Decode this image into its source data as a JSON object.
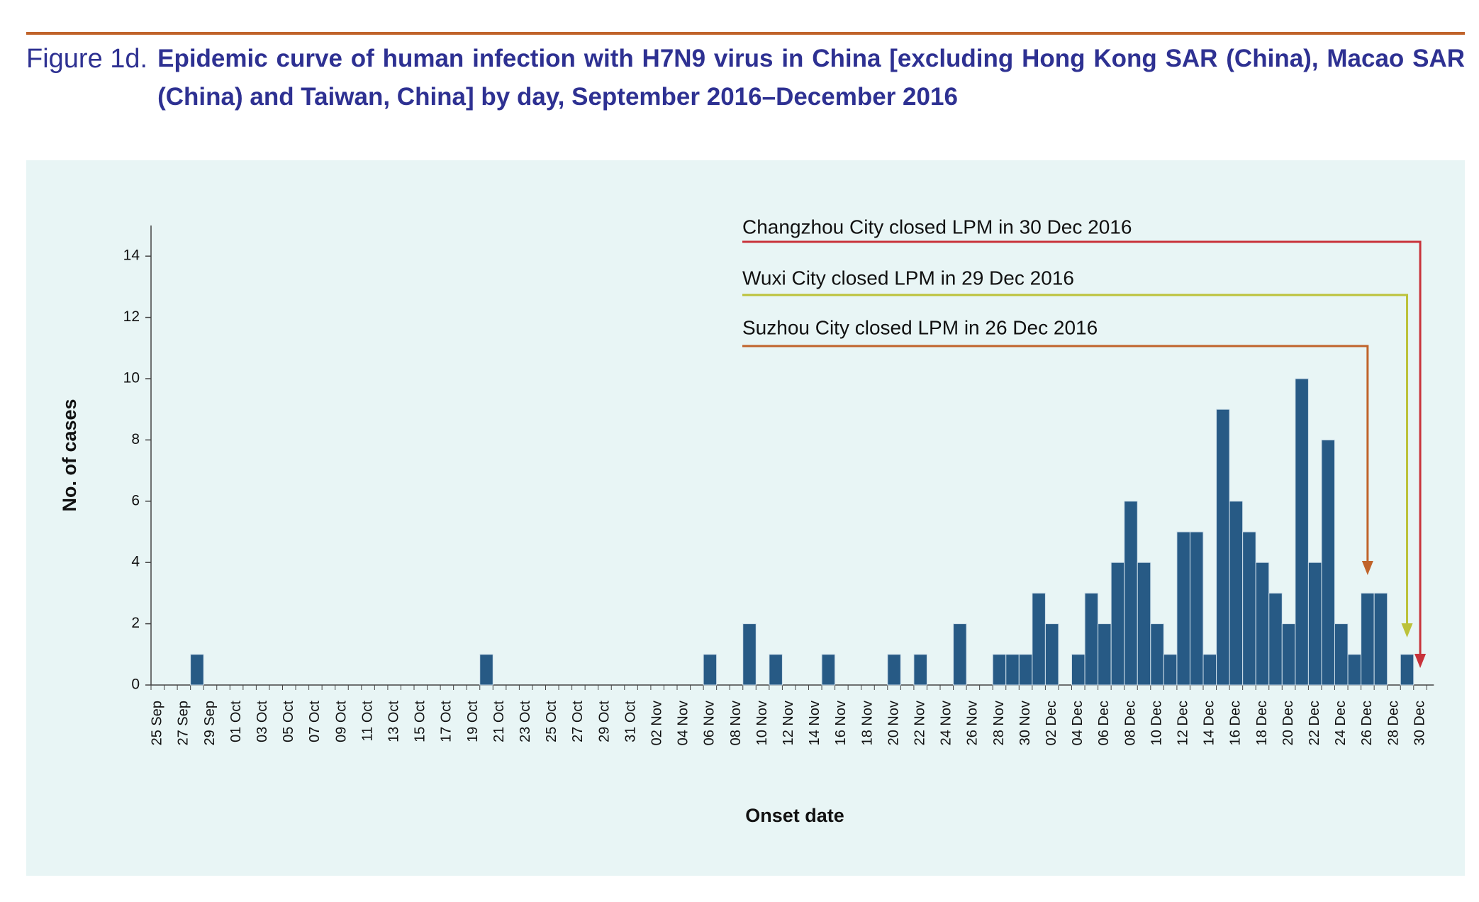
{
  "chart_data": {
    "type": "bar",
    "figure_label": "Figure 1d.",
    "title": "Epidemic curve of human infection with H7N9 virus in China [excluding Hong Kong SAR (China), Macao SAR (China) and Taiwan, China] by day, September 2016–December 2016",
    "x_label": "Onset date",
    "y_label": "No. of cases",
    "color": "#275a85",
    "categories": [
      "25 Sep",
      null,
      "27 Sep",
      null,
      "29 Sep",
      null,
      "01 Oct",
      null,
      "03 Oct",
      null,
      "05 Oct",
      null,
      "07 Oct",
      null,
      "09 Oct",
      null,
      "11 Oct",
      null,
      "13 Oct",
      null,
      "15 Oct",
      null,
      "17 Oct",
      null,
      "19 Oct",
      null,
      "21 Oct",
      null,
      "23 Oct",
      null,
      "25 Oct",
      null,
      "27 Oct",
      null,
      "29 Oct",
      null,
      "31 Oct",
      null,
      "02 Nov",
      null,
      "04 Nov",
      null,
      "06 Nov",
      null,
      "08 Nov",
      null,
      "10 Nov",
      null,
      "12 Nov",
      null,
      "14 Nov",
      null,
      "16 Nov",
      null,
      "18 Nov",
      null,
      "20 Nov",
      null,
      "22 Nov",
      null,
      "24 Nov",
      null,
      "26 Nov",
      null,
      "28 Nov",
      null,
      "30 Nov",
      null,
      "02 Dec",
      null,
      "04 Dec",
      null,
      "06 Dec",
      null,
      "08 Dec",
      null,
      "10 Dec",
      null,
      "12 Dec",
      null,
      "14 Dec",
      null,
      "16 Dec",
      null,
      "18 Dec",
      null,
      "20 Dec",
      null,
      "22 Dec",
      null,
      "24 Dec",
      null,
      "26 Dec",
      null,
      "28 Dec",
      null,
      "30 Dec"
    ],
    "values": [
      0,
      0,
      0,
      1,
      0,
      0,
      0,
      0,
      0,
      0,
      0,
      0,
      0,
      0,
      0,
      0,
      0,
      0,
      0,
      0,
      0,
      0,
      0,
      0,
      0,
      1,
      0,
      0,
      0,
      0,
      0,
      0,
      0,
      0,
      0,
      0,
      0,
      0,
      0,
      0,
      0,
      0,
      1,
      0,
      0,
      2,
      0,
      1,
      0,
      0,
      0,
      1,
      0,
      0,
      0,
      0,
      1,
      0,
      1,
      0,
      0,
      2,
      0,
      0,
      1,
      1,
      1,
      3,
      2,
      0,
      1,
      3,
      2,
      4,
      6,
      4,
      2,
      1,
      5,
      5,
      1,
      9,
      6,
      5,
      4,
      3,
      2,
      10,
      4,
      8,
      2,
      1,
      3,
      3,
      0,
      1,
      0
    ],
    "ylim": [
      0,
      15
    ],
    "yticks": [
      0,
      2,
      4,
      6,
      8,
      10,
      12,
      14
    ],
    "annotations": [
      {
        "text": "Changzhou City closed LPM in 30 Dec 2016",
        "color": "#c8323a"
      },
      {
        "text": "Wuxi City closed LPM in 29 Dec 2016",
        "color": "#bcc23a"
      },
      {
        "text": "Suzhou City closed LPM in 26 Dec 2016",
        "color": "#c0632a"
      }
    ]
  }
}
